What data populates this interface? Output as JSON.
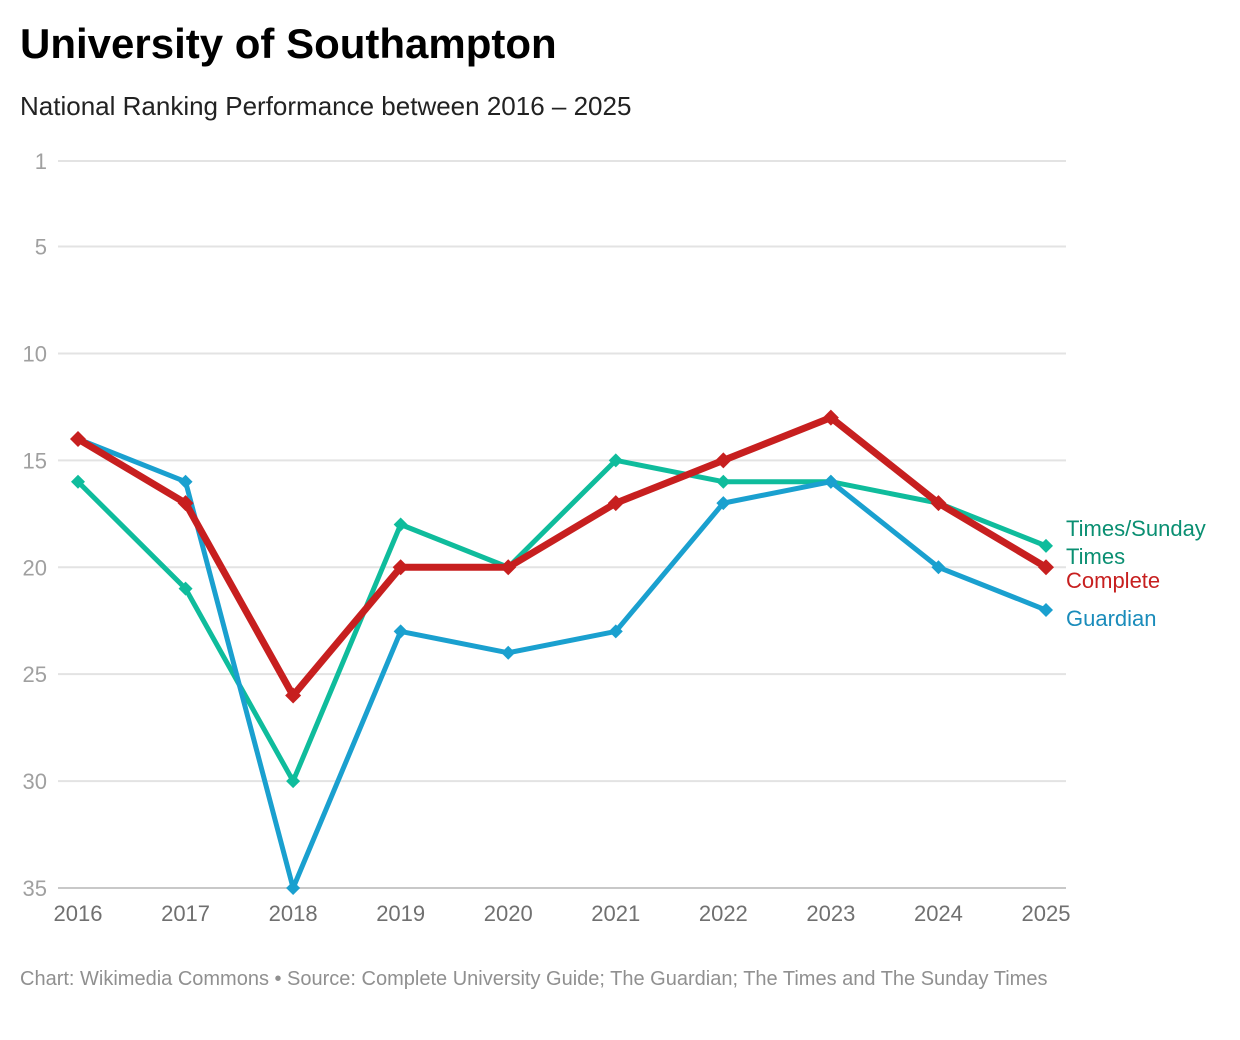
{
  "chart_data": {
    "type": "line",
    "title": "University of Southampton",
    "subtitle": "National Ranking Performance between 2016 – 2025",
    "footer": "Chart: Wikimedia Commons • Source: Complete University Guide; The Guardian; The Times and The Sunday Times",
    "xlabel": "",
    "ylabel": "",
    "x": [
      "2016",
      "2017",
      "2018",
      "2019",
      "2020",
      "2021",
      "2022",
      "2023",
      "2024",
      "2025"
    ],
    "yticks": [
      1,
      5,
      10,
      15,
      20,
      25,
      30,
      35
    ],
    "ylim": [
      1,
      35
    ],
    "y_inverted": true,
    "grid": true,
    "legend_placement": "right (inline labels at line ends)",
    "series": [
      {
        "name": "Times/Sunday Times",
        "label_lines": [
          "Times/Sunday",
          "Times"
        ],
        "color": "#0fbc9c",
        "label_color": "#0a8f72",
        "values": [
          16,
          21,
          30,
          18,
          20,
          15,
          16,
          16,
          17,
          19
        ]
      },
      {
        "name": "Guardian",
        "label_lines": [
          "Guardian"
        ],
        "color": "#1aa0cf",
        "label_color": "#1a8cbb",
        "values": [
          14,
          16,
          35,
          23,
          24,
          23,
          17,
          16,
          20,
          22
        ]
      },
      {
        "name": "Complete",
        "label_lines": [
          "Complete"
        ],
        "color": "#c71f1f",
        "label_color": "#c71f1f",
        "values": [
          14,
          17,
          26,
          20,
          20,
          17,
          15,
          13,
          17,
          20
        ]
      }
    ]
  }
}
